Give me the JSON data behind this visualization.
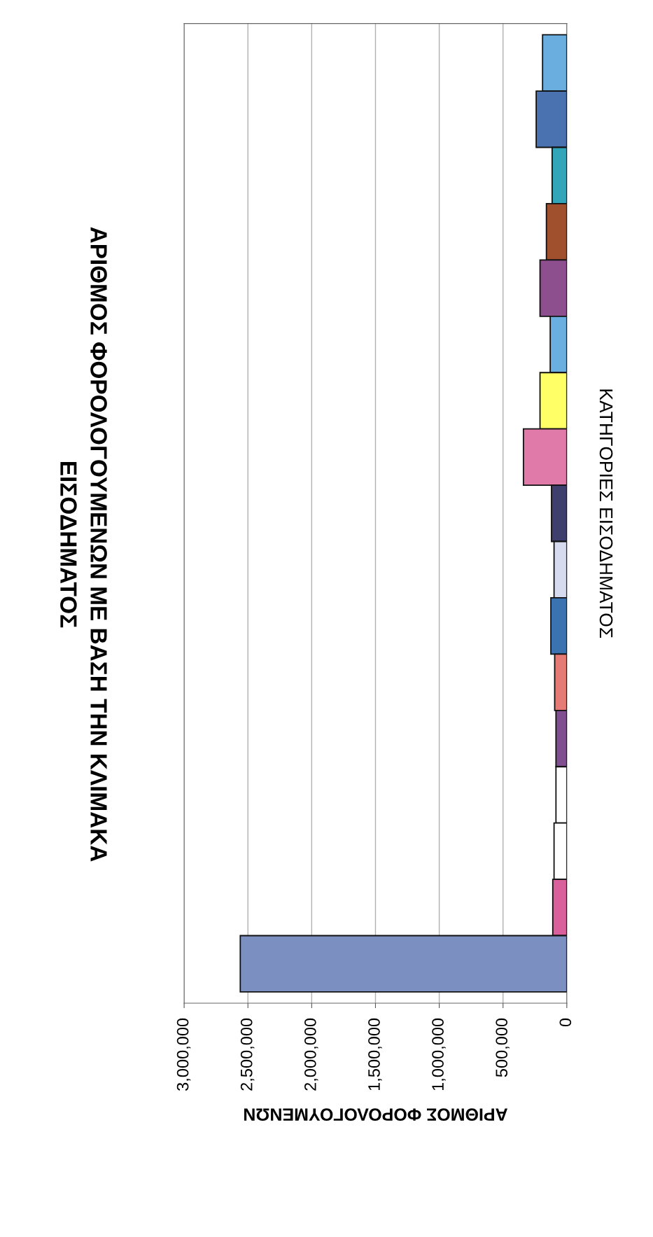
{
  "chart_data": {
    "type": "bar",
    "orientation": "horizontal",
    "title": "ΑΡΙΘΜΟΣ ΦΟΡΟΛΟΓΟΥΜΕΝΩΝ ΜΕ ΒΑΣΗ ΤΗΝ ΚΛΙΜΑΚΑ\nΕΙΣΟΔΗΜΑΤΟΣ",
    "xlabel": "ΑΡΙΘΜΟΣ ΦΟΡΟΛΟΓΟΥΜΕΝΩΝ",
    "ylabel": "ΚΑΤΗΓΟΡΙΕΣ ΕΙΣΟΔΗΜΑΤΟΣ",
    "categories": [
      null,
      null,
      null,
      null,
      null,
      null,
      null,
      null,
      null,
      null,
      null,
      null,
      null,
      null,
      null,
      null,
      null
    ],
    "values": [
      190000,
      240000,
      115000,
      160000,
      210000,
      130000,
      210000,
      340000,
      120000,
      100000,
      125000,
      95000,
      85000,
      85000,
      100000,
      110000,
      2560000
    ],
    "colors": [
      "#6aaee0",
      "#4a72b0",
      "#33a5b8",
      "#a0502d",
      "#8e4f8e",
      "#6aafe0",
      "#ffff66",
      "#e07aa8",
      "#3f3f6e",
      "#d6dbef",
      "#3b73b0",
      "#e57b74",
      "#7f4f8f",
      "#ffffff",
      "#ffffff",
      "#d9609a",
      "#7b8fc0"
    ],
    "xlim": [
      3000000,
      0
    ],
    "xticks": [
      {
        "value": 3000000,
        "label": "3,000,000"
      },
      {
        "value": 2500000,
        "label": "2,500,000"
      },
      {
        "value": 2000000,
        "label": "2,000,000"
      },
      {
        "value": 1500000,
        "label": "1,500,000"
      },
      {
        "value": 1000000,
        "label": "1,000,000"
      },
      {
        "value": 500000,
        "label": "500,000"
      },
      0
    ],
    "grid": "x"
  }
}
